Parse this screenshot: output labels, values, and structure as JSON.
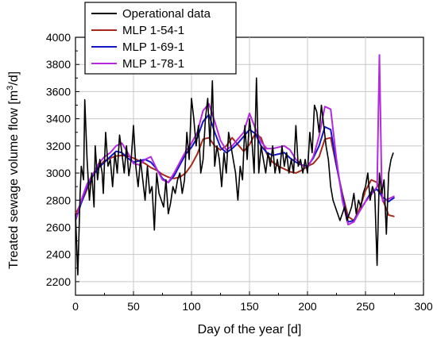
{
  "chart_data": {
    "type": "line",
    "title": "",
    "xlabel": "Day of the year [d]",
    "ylabel": "Treated sewage volume flow [m³/d]",
    "xlim": [
      0,
      300
    ],
    "ylim": [
      2100,
      4000
    ],
    "x_ticks": [
      0,
      50,
      100,
      150,
      200,
      250,
      300
    ],
    "y_ticks": [
      2200,
      2400,
      2600,
      2800,
      3000,
      3200,
      3400,
      3600,
      3800,
      4000
    ],
    "grid": true,
    "legend_position": "top-left",
    "series": [
      {
        "name": "Operational data",
        "color": "#000000",
        "x": [
          0,
          2,
          4,
          5,
          7,
          8,
          10,
          12,
          14,
          16,
          17,
          19,
          21,
          23,
          24,
          26,
          28,
          30,
          32,
          34,
          36,
          38,
          40,
          42,
          44,
          46,
          48,
          50,
          52,
          54,
          56,
          58,
          60,
          62,
          64,
          66,
          68,
          70,
          72,
          74,
          76,
          78,
          80,
          82,
          84,
          86,
          88,
          90,
          92,
          94,
          96,
          98,
          100,
          102,
          104,
          106,
          108,
          110,
          112,
          114,
          116,
          118,
          120,
          122,
          124,
          126,
          128,
          130,
          132,
          134,
          136,
          138,
          140,
          142,
          144,
          146,
          148,
          150,
          152,
          154,
          156,
          158,
          160,
          162,
          164,
          166,
          168,
          170,
          172,
          174,
          176,
          178,
          180,
          182,
          184,
          186,
          188,
          190,
          192,
          194,
          196,
          198,
          200,
          202,
          204,
          206,
          208,
          210,
          212,
          214,
          216,
          218,
          220,
          222,
          224,
          226,
          228,
          230,
          232,
          234,
          236,
          238,
          240,
          242,
          244,
          246,
          248,
          250,
          252,
          254,
          256,
          258,
          260,
          262,
          264,
          266,
          268,
          270,
          272,
          274
        ],
        "y": [
          2700,
          2250,
          2850,
          3050,
          2950,
          3540,
          3100,
          2800,
          3000,
          2750,
          3200,
          2950,
          3100,
          3000,
          2850,
          3300,
          3050,
          3100,
          2900,
          3150,
          3000,
          3280,
          3150,
          3000,
          3200,
          2980,
          3100,
          3350,
          3050,
          2900,
          3100,
          2950,
          2800,
          3050,
          2850,
          2900,
          2580,
          3000,
          2850,
          2800,
          2750,
          2950,
          2700,
          2780,
          2900,
          2850,
          2950,
          3000,
          2850,
          2950,
          3300,
          3100,
          3550,
          3400,
          3200,
          3350,
          3000,
          3100,
          3400,
          3550,
          3200,
          3680,
          3050,
          3200,
          3100,
          2900,
          3150,
          3000,
          3300,
          3200,
          3100,
          3000,
          2800,
          3050,
          2950,
          3350,
          3100,
          3400,
          3250,
          3000,
          3700,
          3000,
          3200,
          3100,
          3000,
          3150,
          3050,
          3200,
          3000,
          3100,
          3000,
          3200,
          3050,
          3150,
          3000,
          3100,
          3000,
          3350,
          3050,
          3100,
          3000,
          3100,
          3000,
          3300,
          3150,
          3500,
          3450,
          3300,
          3500,
          3350,
          3200,
          3100,
          2900,
          2800,
          2750,
          2700,
          2650,
          2700,
          2750,
          2650,
          2700,
          2750,
          2850,
          2700,
          2800,
          2750,
          2850,
          2900,
          3000,
          2800,
          2900,
          2850,
          2320,
          3000,
          2850,
          2950,
          2550,
          3000,
          3100,
          3150
        ]
      },
      {
        "name": "MLP 1-54-1",
        "color": "#a52a1a",
        "x": [
          0,
          5,
          10,
          15,
          20,
          25,
          30,
          35,
          40,
          45,
          50,
          55,
          60,
          65,
          70,
          75,
          80,
          85,
          90,
          95,
          100,
          105,
          110,
          115,
          120,
          125,
          130,
          135,
          140,
          145,
          150,
          155,
          160,
          165,
          170,
          175,
          180,
          185,
          190,
          195,
          200,
          205,
          210,
          215,
          220,
          225,
          230,
          235,
          240,
          245,
          250,
          255,
          260,
          265,
          270,
          275
        ],
        "y": [
          2700,
          2780,
          2880,
          2980,
          3050,
          3090,
          3110,
          3125,
          3130,
          3125,
          3110,
          3090,
          3070,
          3040,
          3020,
          2990,
          2970,
          2960,
          2970,
          3000,
          3060,
          3140,
          3250,
          3260,
          3200,
          3170,
          3200,
          3260,
          3210,
          3160,
          3210,
          3290,
          3260,
          3140,
          3080,
          3050,
          3030,
          3010,
          3000,
          3020,
          3050,
          3070,
          3120,
          3250,
          3260,
          3050,
          2850,
          2680,
          2650,
          2740,
          2870,
          2950,
          2930,
          2800,
          2690,
          2680
        ]
      },
      {
        "name": "MLP 1-69-1",
        "color": "#1515c8",
        "x": [
          0,
          5,
          10,
          15,
          20,
          25,
          30,
          35,
          40,
          45,
          50,
          55,
          60,
          65,
          70,
          75,
          80,
          85,
          90,
          95,
          100,
          105,
          110,
          115,
          120,
          125,
          130,
          135,
          140,
          145,
          150,
          155,
          160,
          165,
          170,
          175,
          180,
          185,
          190,
          195,
          200,
          205,
          210,
          215,
          220,
          225,
          230,
          235,
          240,
          245,
          250,
          255,
          260,
          265,
          270,
          275
        ],
        "y": [
          2650,
          2780,
          2900,
          2980,
          3040,
          3080,
          3120,
          3160,
          3150,
          3110,
          3080,
          3090,
          3100,
          3080,
          3030,
          2960,
          2930,
          2980,
          3060,
          3140,
          3190,
          3260,
          3380,
          3430,
          3300,
          3190,
          3150,
          3180,
          3220,
          3270,
          3320,
          3290,
          3200,
          3150,
          3130,
          3140,
          3150,
          3110,
          3080,
          3060,
          3050,
          3110,
          3200,
          3340,
          3320,
          3060,
          2830,
          2640,
          2650,
          2720,
          2790,
          2860,
          2880,
          2820,
          2790,
          2820
        ]
      },
      {
        "name": "MLP 1-78-1",
        "color": "#b52ae0",
        "x": [
          0,
          5,
          10,
          15,
          20,
          25,
          30,
          35,
          40,
          45,
          50,
          55,
          60,
          65,
          70,
          75,
          80,
          85,
          90,
          95,
          100,
          105,
          110,
          115,
          120,
          125,
          130,
          135,
          140,
          145,
          150,
          155,
          160,
          165,
          170,
          175,
          180,
          185,
          190,
          195,
          200,
          205,
          210,
          215,
          220,
          225,
          230,
          235,
          240,
          245,
          250,
          255,
          260,
          262,
          264,
          265,
          270,
          275
        ],
        "y": [
          2650,
          2800,
          2920,
          2990,
          3070,
          3120,
          3150,
          3200,
          3220,
          3150,
          3070,
          3060,
          3100,
          3120,
          3030,
          2950,
          2930,
          3000,
          3080,
          3160,
          3220,
          3300,
          3460,
          3510,
          3380,
          3240,
          3170,
          3200,
          3250,
          3300,
          3440,
          3330,
          3230,
          3180,
          3180,
          3190,
          3200,
          3170,
          3100,
          3060,
          3040,
          3120,
          3270,
          3490,
          3470,
          3100,
          2800,
          2620,
          2640,
          2720,
          2790,
          2840,
          2900,
          3870,
          2900,
          2790,
          2810,
          2830
        ]
      }
    ]
  }
}
